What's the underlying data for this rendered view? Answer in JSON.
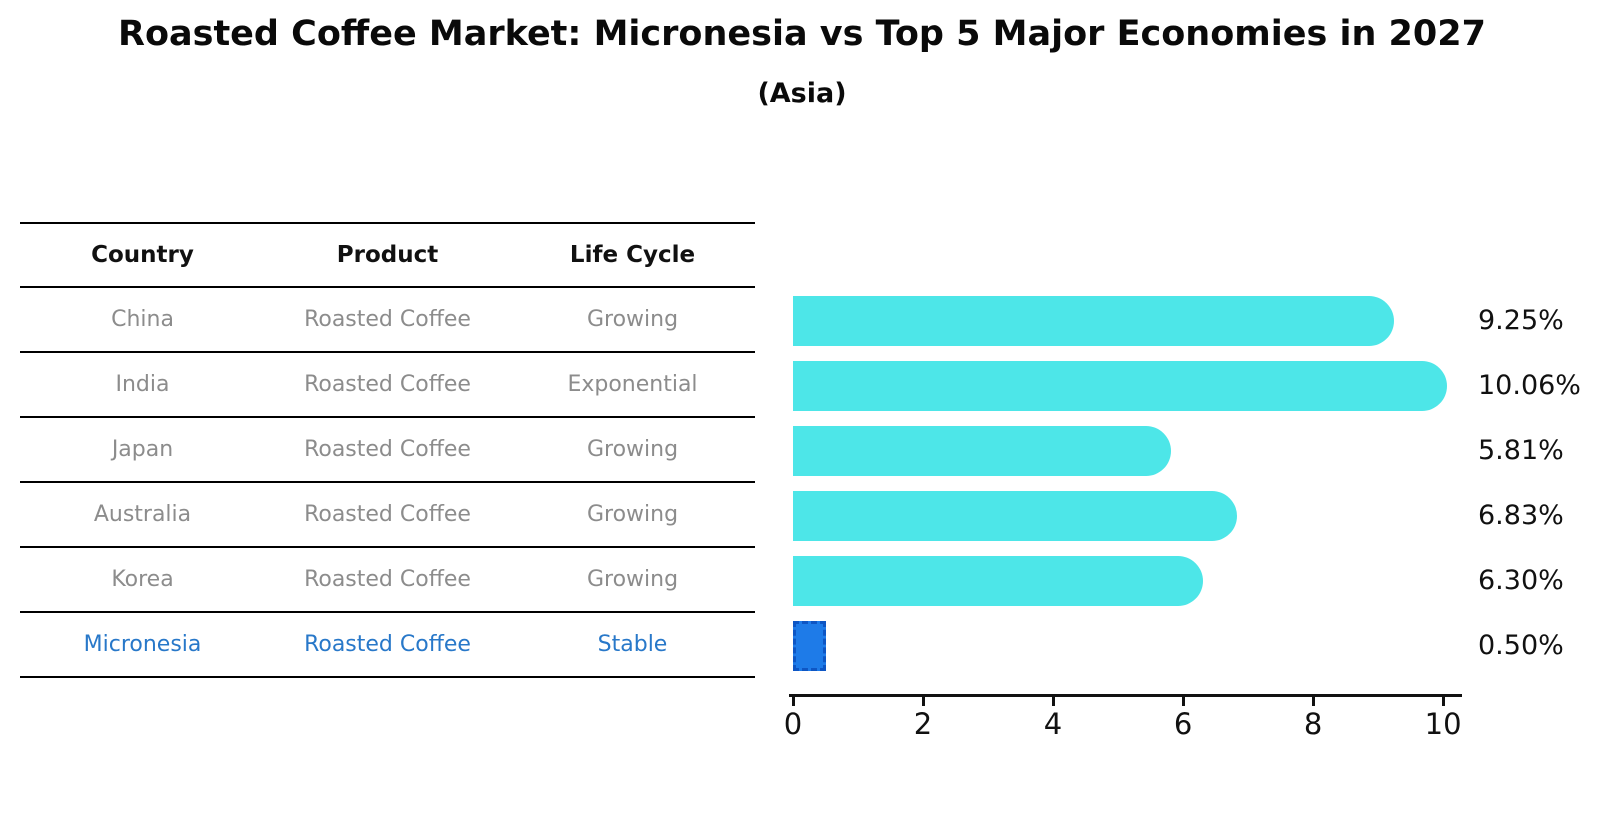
{
  "title": "Roasted Coffee Market: Micronesia vs Top 5 Major Economies in 2027",
  "subtitle": "(Asia)",
  "table": {
    "headers": [
      "Country",
      "Product",
      "Life Cycle"
    ],
    "rows": [
      {
        "country": "China",
        "product": "Roasted Coffee",
        "life_cycle": "Growing",
        "highlight": false
      },
      {
        "country": "India",
        "product": "Roasted Coffee",
        "life_cycle": "Exponential",
        "highlight": false
      },
      {
        "country": "Japan",
        "product": "Roasted Coffee",
        "life_cycle": "Growing",
        "highlight": false
      },
      {
        "country": "Australia",
        "product": "Roasted Coffee",
        "life_cycle": "Growing",
        "highlight": false
      },
      {
        "country": "Korea",
        "product": "Roasted Coffee",
        "life_cycle": "Growing",
        "highlight": false
      },
      {
        "country": "Micronesia",
        "product": "Roasted Coffee",
        "life_cycle": "Stable",
        "highlight": true
      }
    ]
  },
  "chart_data": {
    "type": "bar",
    "orientation": "horizontal",
    "title": "Roasted Coffee Market: Micronesia vs Top 5 Major Economies in 2027 (Asia)",
    "categories": [
      "China",
      "India",
      "Japan",
      "Australia",
      "Korea",
      "Micronesia"
    ],
    "values": [
      9.25,
      10.06,
      5.81,
      6.83,
      6.3,
      0.5
    ],
    "value_labels": [
      "9.25%",
      "10.06%",
      "5.81%",
      "6.83%",
      "6.30%",
      "0.50%"
    ],
    "unit": "percent",
    "xticks": [
      0,
      2,
      4,
      6,
      8,
      10
    ],
    "xlim": [
      0,
      10.26
    ],
    "grid": false,
    "legend": false,
    "highlight_index": 5
  },
  "colors": {
    "bar": "#4DE6E8",
    "highlight_bar": "#1E7BE8",
    "highlight_bar_border": "#0E56C4",
    "highlight_text": "#2878C9",
    "table_text": "#8c8c8c",
    "axis": "#111111"
  }
}
